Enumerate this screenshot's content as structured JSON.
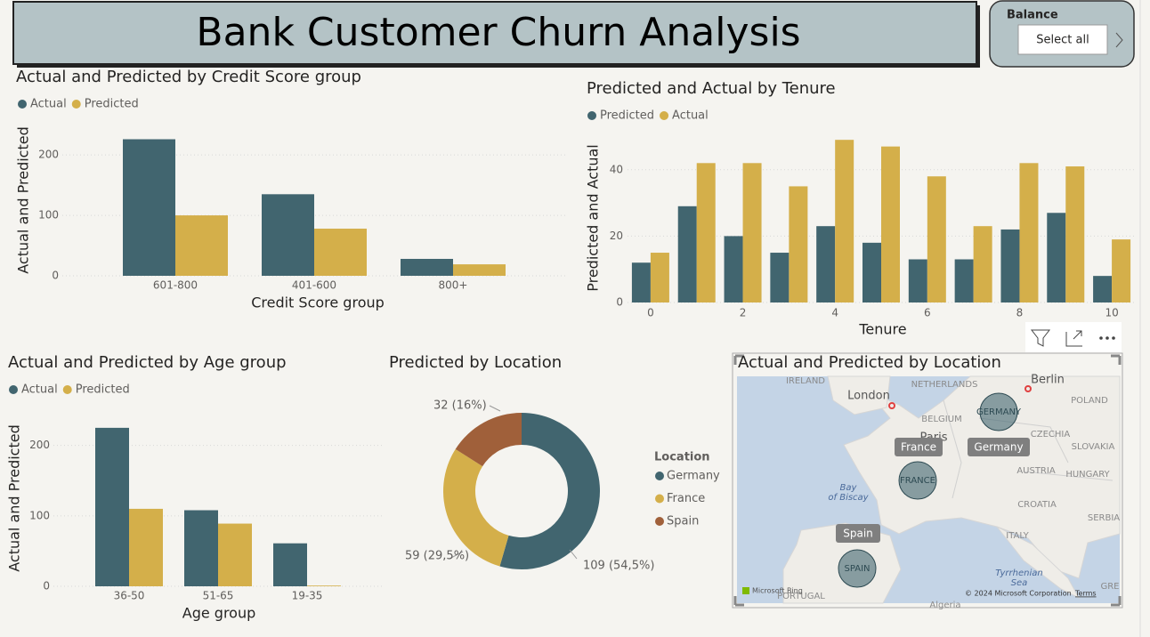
{
  "header": {
    "title": "Bank Customer Churn Analysis"
  },
  "slicer": {
    "label": "Balance",
    "value": "Select all"
  },
  "chart_data": [
    {
      "type": "bar",
      "title": "Actual and Predicted by Credit Score group",
      "x_label": "Credit Score group",
      "y_label": "Actual and Predicted",
      "categories": [
        "601-800",
        "401-600",
        "800+"
      ],
      "series": [
        {
          "name": "Actual",
          "color": "#41656f",
          "values": [
            226,
            135,
            28
          ]
        },
        {
          "name": "Predicted",
          "color": "#d4af4a",
          "values": [
            100,
            78,
            19
          ]
        }
      ],
      "ylim": [
        0,
        240
      ],
      "yticks": [
        0,
        100,
        200
      ],
      "grid": true,
      "legend": "top-left"
    },
    {
      "type": "bar",
      "title": "Predicted and Actual by Tenure",
      "x_label": "Tenure",
      "y_label": "Predicted and Actual",
      "x": [
        0,
        1,
        2,
        3,
        4,
        5,
        6,
        7,
        8,
        9,
        10
      ],
      "series": [
        {
          "name": "Predicted",
          "color": "#41656f",
          "values": [
            12,
            29,
            20,
            15,
            23,
            18,
            13,
            13,
            22,
            27,
            8
          ]
        },
        {
          "name": "Actual",
          "color": "#d4af4a",
          "values": [
            15,
            42,
            42,
            35,
            49,
            47,
            38,
            23,
            42,
            41,
            19
          ]
        }
      ],
      "xlim": [
        -0.5,
        10.5
      ],
      "xticks": [
        0,
        2,
        4,
        6,
        8,
        10
      ],
      "ylim": [
        0,
        52
      ],
      "yticks": [
        0,
        20,
        40
      ],
      "grid": true,
      "legend": "top-left"
    },
    {
      "type": "bar",
      "title": "Actual and Predicted by Age group",
      "x_label": "Age group",
      "y_label": "Actual and Predicted",
      "categories": [
        "36-50",
        "51-65",
        "19-35"
      ],
      "series": [
        {
          "name": "Actual",
          "color": "#41656f",
          "values": [
            225,
            108,
            61
          ]
        },
        {
          "name": "Predicted",
          "color": "#d4af4a",
          "values": [
            110,
            89,
            1
          ]
        }
      ],
      "ylim": [
        0,
        240
      ],
      "yticks": [
        0,
        100,
        200
      ],
      "grid": true,
      "legend": "top-left"
    },
    {
      "type": "donut",
      "title": "Predicted by Location",
      "legend_title": "Location",
      "categories": [
        "Germany",
        "France",
        "Spain"
      ],
      "values": [
        109,
        59,
        32
      ],
      "value_labels": [
        "109 (54,5%)",
        "59 (29,5%)",
        "32 (16%)"
      ],
      "colors": [
        "#41656f",
        "#d4af4a",
        "#a0603a"
      ],
      "legend": "right"
    }
  ],
  "map": {
    "title": "Actual and Predicted by Location",
    "places": [
      "IRELAND",
      "London",
      "NETHERLANDS",
      "Berlin",
      "POLAND",
      "BELGIUM",
      "Paris",
      "CZECHIA",
      "SLOVAKIA",
      "AUSTRIA",
      "HUNGARY",
      "Bay",
      "of Biscay",
      "CROATIA",
      "SERBIA",
      "ITALY",
      "Tyrrhenian",
      "Sea",
      "PORTUGAL",
      "GRE",
      "Algeria"
    ],
    "bubbles": [
      "GERMANY",
      "FRANCE",
      "SPAIN"
    ],
    "tags": [
      "France",
      "Germany",
      "Spain"
    ],
    "logo": "Microsoft Bing",
    "attribution": "© 2024 Microsoft Corporation",
    "terms": "Terms"
  }
}
